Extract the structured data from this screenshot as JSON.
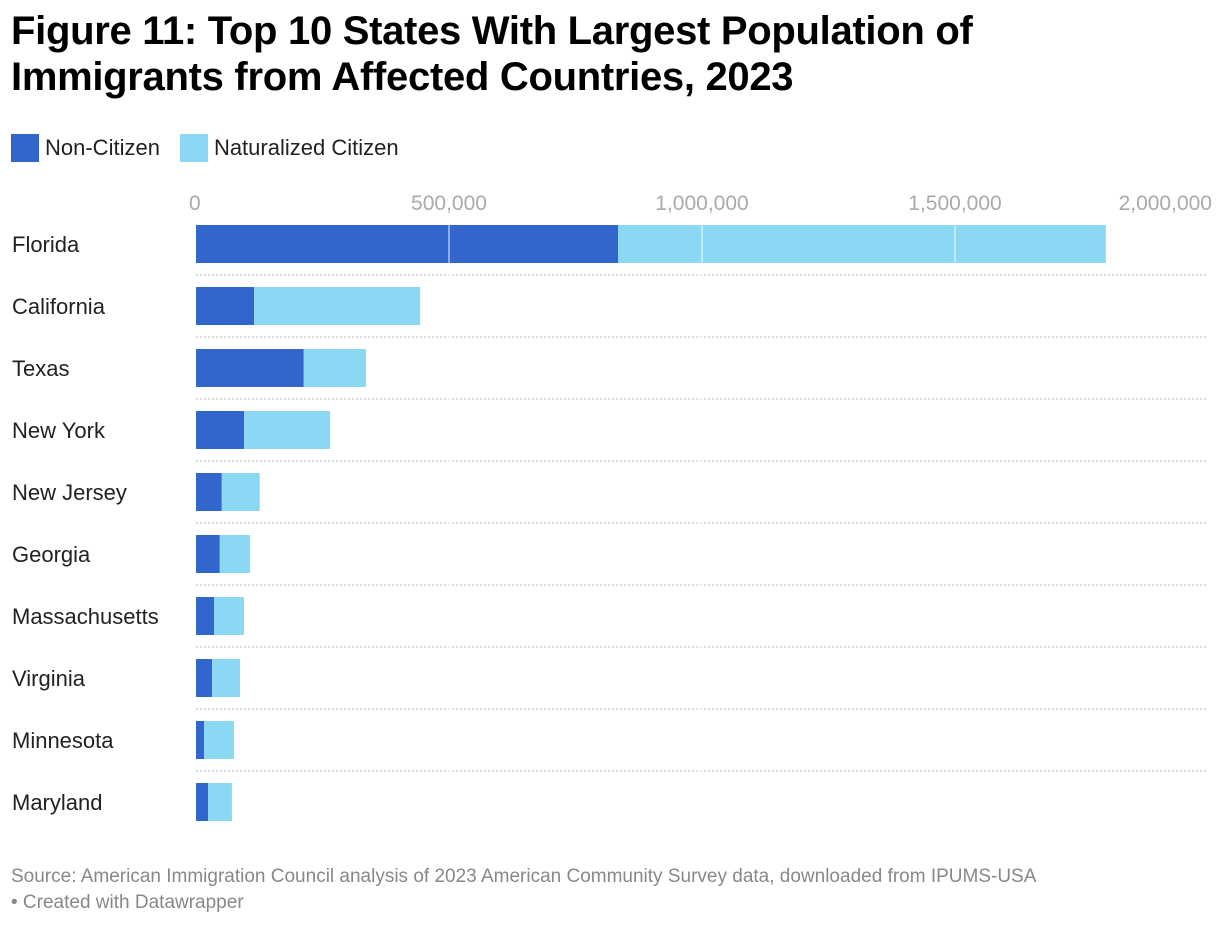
{
  "title": "Figure 11: Top 10 States With Largest Population of Immigrants from Affected Countries, 2023",
  "source": "Source: American Immigration Council analysis of 2023 American Community Survey data, downloaded from IPUMS-USA",
  "credit": "• Created with Datawrapper",
  "chart_data": {
    "type": "bar",
    "orientation": "horizontal",
    "stacked": true,
    "categories": [
      "Florida",
      "California",
      "Texas",
      "New York",
      "New Jersey",
      "Georgia",
      "Massachusetts",
      "Virginia",
      "Minnesota",
      "Maryland"
    ],
    "series": [
      {
        "name": "Non-Citizen",
        "color": "#3366cc",
        "values": [
          834000,
          115000,
          213000,
          95000,
          51000,
          47000,
          36000,
          32000,
          16000,
          24000
        ]
      },
      {
        "name": "Naturalized Citizen",
        "color": "#8bd8f5",
        "values": [
          964000,
          328000,
          123000,
          170000,
          75000,
          60000,
          59000,
          55000,
          59000,
          47000
        ]
      }
    ],
    "xlim": [
      0,
      2000000
    ],
    "ticks": [
      0,
      500000,
      1000000,
      1500000,
      2000000
    ],
    "tick_labels": [
      "0",
      "500,000",
      "1,000,000",
      "1,500,000",
      "2,000,000"
    ],
    "legend_position": "top-left"
  }
}
